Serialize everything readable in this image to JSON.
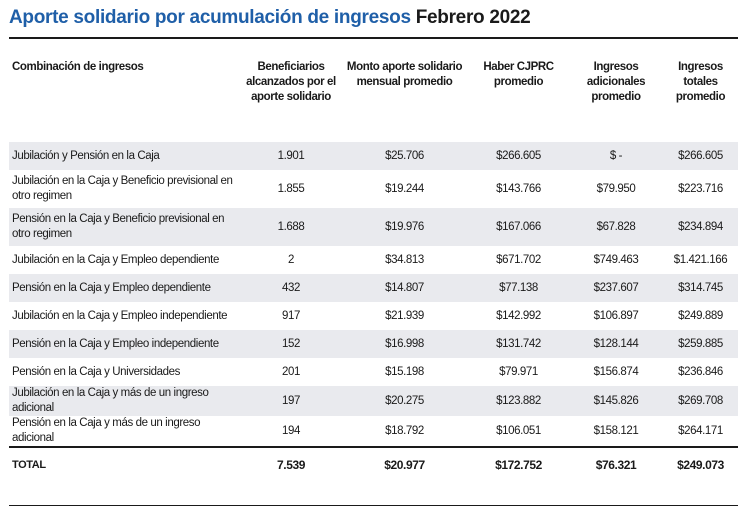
{
  "title": {
    "main": "Aporte solidario por acumulación de ingresos",
    "period": "Febrero 2022"
  },
  "chart_data": {
    "type": "table",
    "columns": [
      "Combinación de ingresos",
      "Beneficiarios alcanzados por el aporte solidario",
      "Monto aporte solidario mensual promedio",
      "Haber CJPRC promedio",
      "Ingresos adicionales promedio",
      "Ingresos totales promedio"
    ],
    "rows": [
      [
        "Jubilación y Pensión en la Caja",
        "1.901",
        "$25.706",
        "$266.605",
        "$ -",
        "$266.605"
      ],
      [
        "Jubilación en la Caja y Beneficio previsional en otro regimen",
        "1.855",
        "$19.244",
        "$143.766",
        "$79.950",
        "$223.716"
      ],
      [
        "Pensión en la Caja y Beneficio previsional en otro regimen",
        "1.688",
        "$19.976",
        "$167.066",
        "$67.828",
        "$234.894"
      ],
      [
        "Jubilación en la Caja y Empleo dependiente",
        "2",
        "$34.813",
        "$671.702",
        "$749.463",
        "$1.421.166"
      ],
      [
        "Pensión en la Caja y Empleo dependiente",
        "432",
        "$14.807",
        "$77.138",
        "$237.607",
        "$314.745"
      ],
      [
        "Jubilación en la Caja y Empleo independiente",
        "917",
        "$21.939",
        "$142.992",
        "$106.897",
        "$249.889"
      ],
      [
        "Pensión en la Caja y Empleo independiente",
        "152",
        "$16.998",
        "$131.742",
        "$128.144",
        "$259.885"
      ],
      [
        "Pensión en la Caja y Universidades",
        "201",
        "$15.198",
        "$79.971",
        "$156.874",
        "$236.846"
      ],
      [
        "Jubilación en la Caja y más de un ingreso adicional",
        "197",
        "$20.275",
        "$123.882",
        "$145.826",
        "$269.708"
      ],
      [
        "Pensión en la Caja y más de un ingreso adicional",
        "194",
        "$18.792",
        "$106.051",
        "$158.121",
        "$264.171"
      ]
    ],
    "total": [
      "TOTAL",
      "7.539",
      "$20.977",
      "$172.752",
      "$76.321",
      "$249.073"
    ]
  },
  "colors": {
    "title_accent": "#1f5fa8",
    "row_shade": "#e9eaee",
    "rule": "#1a1a1a"
  }
}
